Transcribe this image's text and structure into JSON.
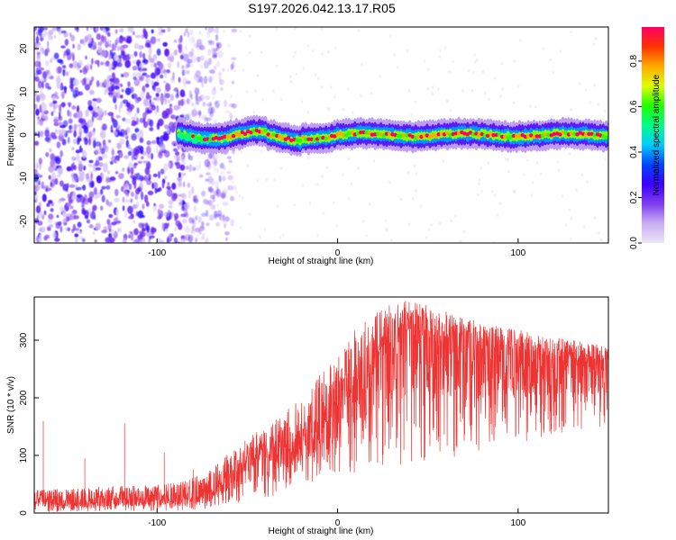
{
  "title": "S197.2026.042.13.17.R05",
  "colors": {
    "snr_line": "#ee3333",
    "noise_purple": "#9a55e0",
    "background": "#ffffff"
  },
  "chart_data": [
    {
      "type": "heatmap",
      "name": "spectrogram",
      "xlabel": "Height of straight line (km)",
      "ylabel": "Frequency (Hz)",
      "xlim": [
        -168,
        150
      ],
      "ylim": [
        -25,
        25
      ],
      "xticks": [
        -100,
        0,
        100
      ],
      "xtick_labels": [
        "-100",
        "0",
        "100"
      ],
      "yticks": [
        20,
        10,
        0,
        -10,
        -20
      ],
      "ytick_labels": [
        "20",
        "10",
        "0",
        "-10",
        "-20"
      ],
      "signal_band": {
        "x_range": [
          -88,
          150
        ],
        "center_hz": 0,
        "halfwidth_hz": 2.5,
        "peak_amplitude": 0.95
      },
      "noise_region": {
        "x_range": [
          -168,
          -65
        ],
        "freq_range_hz": [
          -25,
          25
        ],
        "amplitude_range": [
          0.02,
          0.3
        ]
      },
      "colorbar": {
        "label": "Normalized spectral amplitude",
        "range": [
          0.0,
          0.95
        ],
        "ticks": [
          0.0,
          0.2,
          0.4,
          0.6,
          0.8
        ],
        "tick_labels": [
          "0.0",
          "0.2",
          "0.4",
          "0.6",
          "0.8"
        ],
        "colormap": [
          "#ebe6f5",
          "#c9aef2",
          "#7f3cf0",
          "#3b00ff",
          "#0044ff",
          "#00ccff",
          "#00ff88",
          "#22ff00",
          "#ddff00",
          "#ffaa00",
          "#ff3300",
          "#ff0066"
        ]
      }
    },
    {
      "type": "line",
      "name": "snr",
      "xlabel": "Height of straight line (km)",
      "ylabel": "SNR (10 * v/v)",
      "xlim": [
        -168,
        150
      ],
      "ylim": [
        0,
        375
      ],
      "xticks": [
        -100,
        0,
        100
      ],
      "xtick_labels": [
        "-100",
        "0",
        "100"
      ],
      "yticks": [
        0,
        100,
        200,
        300
      ],
      "ytick_labels": [
        "0",
        "100",
        "200",
        "300"
      ],
      "series": [
        {
          "name": "SNR",
          "x_keypoints": [
            -168,
            -140,
            -110,
            -85,
            -70,
            -60,
            -50,
            -40,
            -30,
            -20,
            -10,
            0,
            10,
            20,
            30,
            40,
            50,
            60,
            70,
            80,
            90,
            100,
            110,
            120,
            130,
            140,
            150
          ],
          "baseline": [
            20,
            20,
            22,
            25,
            35,
            60,
            85,
            95,
            110,
            130,
            160,
            185,
            230,
            260,
            300,
            320,
            315,
            300,
            295,
            290,
            285,
            282,
            275,
            270,
            270,
            265,
            265
          ],
          "upper_envelope": [
            40,
            45,
            48,
            55,
            75,
            105,
            130,
            150,
            175,
            200,
            240,
            270,
            320,
            345,
            365,
            370,
            360,
            350,
            340,
            330,
            325,
            318,
            312,
            305,
            300,
            295,
            290
          ],
          "lower_envelope": [
            2,
            2,
            3,
            4,
            8,
            15,
            20,
            25,
            35,
            45,
            55,
            60,
            70,
            75,
            80,
            85,
            90,
            95,
            100,
            110,
            115,
            120,
            130,
            135,
            140,
            145,
            150
          ],
          "spikes": [
            {
              "x": -163,
              "y": 160
            },
            {
              "x": -140,
              "y": 95
            },
            {
              "x": -118,
              "y": 155
            },
            {
              "x": -96,
              "y": 105
            },
            {
              "x": -80,
              "y": 75
            }
          ]
        }
      ]
    }
  ]
}
